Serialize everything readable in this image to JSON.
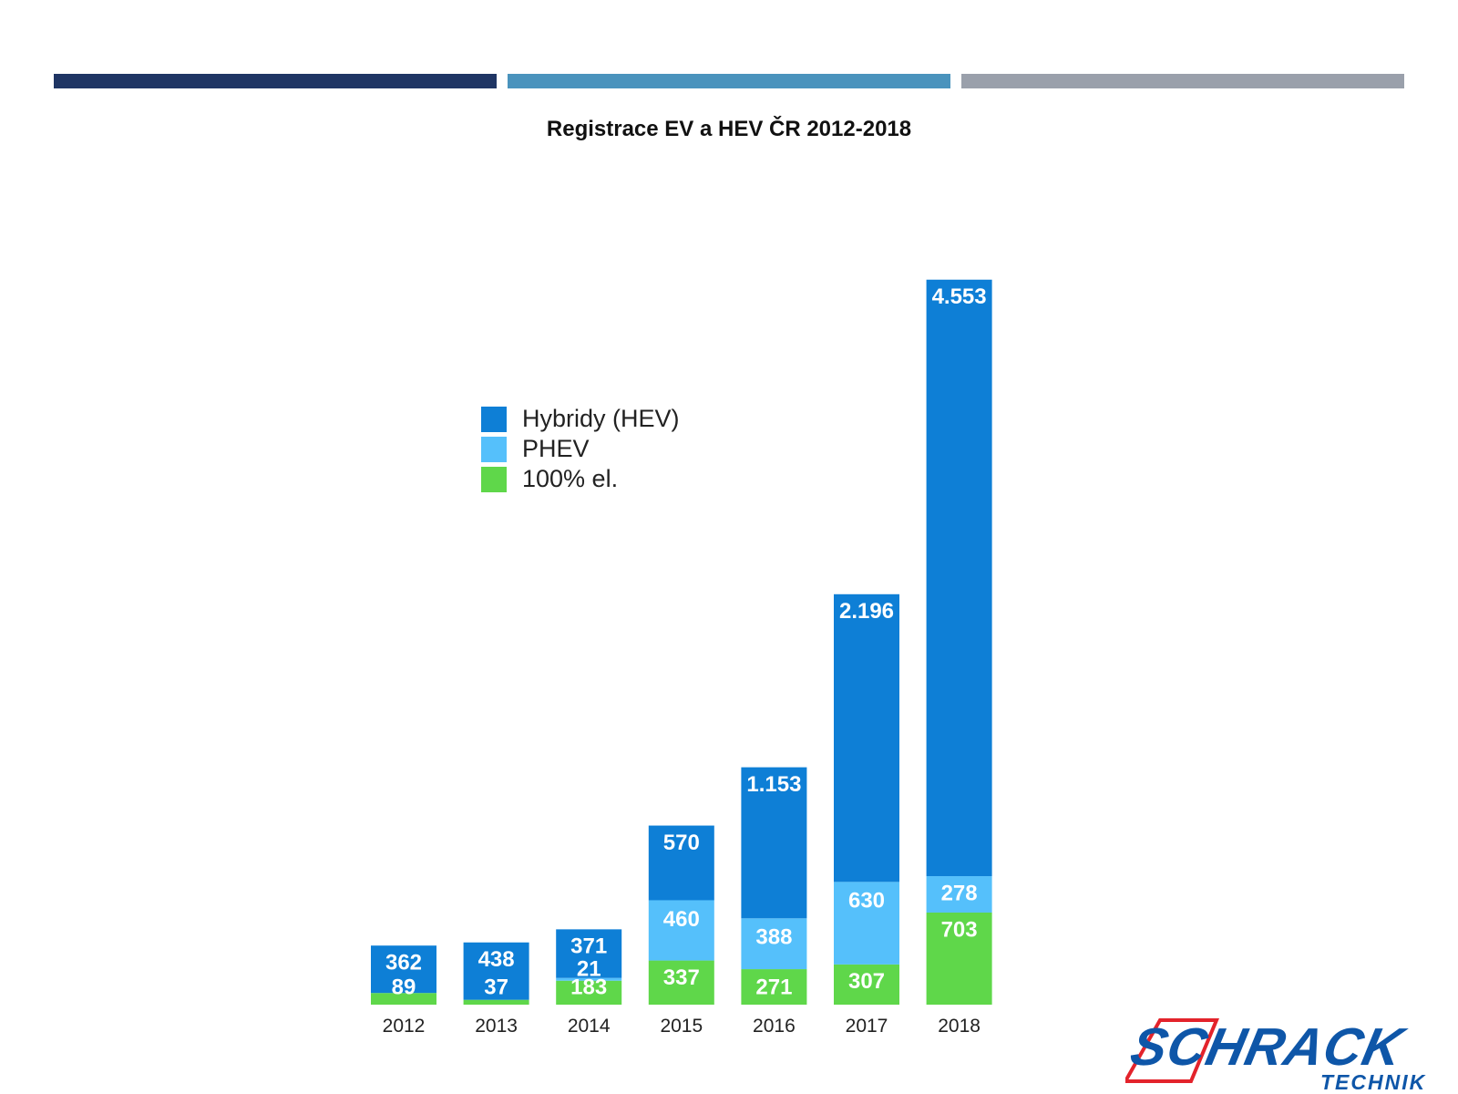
{
  "header": {
    "bar_colors": [
      "#1f3564",
      "#4a93bd",
      "#9aa0ab"
    ]
  },
  "chart_data": {
    "type": "bar",
    "stacked": true,
    "title": "Registrace EV a HEV ČR 2012-2018",
    "xlabel": "",
    "ylabel": "",
    "categories": [
      "2012",
      "2013",
      "2014",
      "2015",
      "2016",
      "2017",
      "2018"
    ],
    "series": [
      {
        "name": "100% el.",
        "color": "#5fd74a",
        "values": [
          89,
          37,
          183,
          337,
          271,
          307,
          703
        ]
      },
      {
        "name": "PHEV",
        "color": "#55c0fb",
        "values": [
          0,
          0,
          21,
          460,
          388,
          630,
          278
        ]
      },
      {
        "name": "Hybridy (HEV)",
        "color": "#0e7fd6",
        "values": [
          362,
          438,
          371,
          570,
          1153,
          2196,
          4553
        ]
      }
    ],
    "data_labels": [
      [
        "89",
        "37",
        "183",
        "337",
        "271",
        "307",
        "703"
      ],
      [
        "",
        "",
        "21",
        "460",
        "388",
        "630",
        "278"
      ],
      [
        "362",
        "438",
        "371",
        "570",
        "1.153",
        "2.196",
        "4.553"
      ]
    ],
    "legend": {
      "position": "upper-left",
      "order": [
        "Hybridy (HEV)",
        "PHEV",
        "100% el."
      ]
    },
    "grid": false
  },
  "logo": {
    "text_main": "SCHRACK",
    "text_sub": "TECHNIK",
    "color_main": "#0e56a8",
    "color_accent": "#e3232b"
  }
}
